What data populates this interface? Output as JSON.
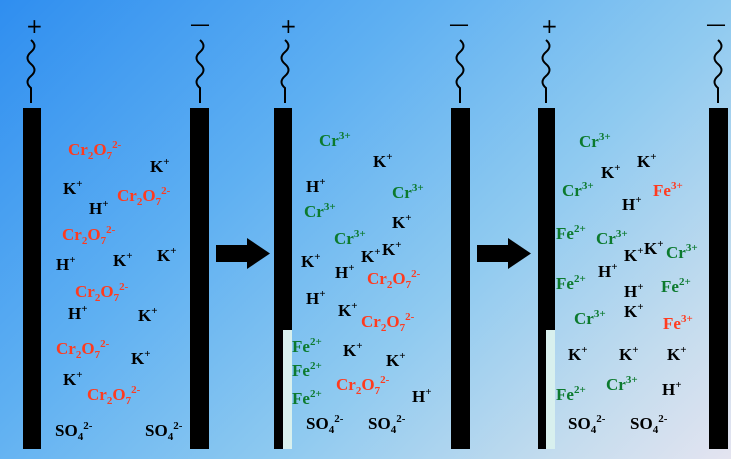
{
  "panels": [
    {
      "terminals": {
        "positive": "+",
        "negative": "—"
      },
      "ions": [
        {
          "id": "p1-1",
          "formula": "Cr<sub>2</sub>O<sub>7</sub><sup>2-</sup>",
          "color": "red"
        },
        {
          "id": "p1-2",
          "formula": "K<sup>+</sup>",
          "color": "black"
        },
        {
          "id": "p1-3",
          "formula": "K<sup>+</sup>",
          "color": "black"
        },
        {
          "id": "p1-4",
          "formula": "Cr<sub>2</sub>O<sub>7</sub><sup>2-</sup>",
          "color": "red"
        },
        {
          "id": "p1-5",
          "formula": "H<sup>+</sup>",
          "color": "black"
        },
        {
          "id": "p1-6",
          "formula": "Cr<sub>2</sub>O<sub>7</sub><sup>2-</sup>",
          "color": "red"
        },
        {
          "id": "p1-7",
          "formula": "H<sup>+</sup>",
          "color": "black"
        },
        {
          "id": "p1-8",
          "formula": "K<sup>+</sup>",
          "color": "black"
        },
        {
          "id": "p1-9",
          "formula": "K<sup>+</sup>",
          "color": "black"
        },
        {
          "id": "p1-10",
          "formula": "Cr<sub>2</sub>O<sub>7</sub><sup>2-</sup>",
          "color": "red"
        },
        {
          "id": "p1-11",
          "formula": "H<sup>+</sup>",
          "color": "black"
        },
        {
          "id": "p1-12",
          "formula": "K<sup>+</sup>",
          "color": "black"
        },
        {
          "id": "p1-13",
          "formula": "Cr<sub>2</sub>O<sub>7</sub><sup>2-</sup>",
          "color": "red"
        },
        {
          "id": "p1-14",
          "formula": "K<sup>+</sup>",
          "color": "black"
        },
        {
          "id": "p1-15",
          "formula": "K<sup>+</sup>",
          "color": "black"
        },
        {
          "id": "p1-16",
          "formula": "Cr<sub>2</sub>O<sub>7</sub><sup>2-</sup>",
          "color": "red"
        },
        {
          "id": "p1-17",
          "formula": "SO<sub>4</sub><sup>2-</sup>",
          "color": "black"
        },
        {
          "id": "p1-18",
          "formula": "SO<sub>4</sub><sup>2-</sup>",
          "color": "black"
        }
      ]
    },
    {
      "terminals": {
        "positive": "+",
        "negative": "—"
      },
      "ions": [
        {
          "id": "p2-1",
          "formula": "Cr<sup>3+</sup>",
          "color": "green"
        },
        {
          "id": "p2-2",
          "formula": "K<sup>+</sup>",
          "color": "black"
        },
        {
          "id": "p2-3",
          "formula": "H<sup>+</sup>",
          "color": "black"
        },
        {
          "id": "p2-4",
          "formula": "Cr<sup>3+</sup>",
          "color": "green"
        },
        {
          "id": "p2-5",
          "formula": "Cr<sup>3+</sup>",
          "color": "green"
        },
        {
          "id": "p2-6",
          "formula": "K<sup>+</sup>",
          "color": "black"
        },
        {
          "id": "p2-7",
          "formula": "Cr<sup>3+</sup>",
          "color": "green"
        },
        {
          "id": "p2-8",
          "formula": "K<sup>+</sup>",
          "color": "black"
        },
        {
          "id": "p2-9",
          "formula": "K<sup>+</sup>",
          "color": "black"
        },
        {
          "id": "p2-10",
          "formula": "K<sup>+</sup>",
          "color": "black"
        },
        {
          "id": "p2-11",
          "formula": "H<sup>+</sup>",
          "color": "black"
        },
        {
          "id": "p2-12",
          "formula": "Cr<sub>2</sub>O<sub>7</sub><sup>2-</sup>",
          "color": "red"
        },
        {
          "id": "p2-13",
          "formula": "H<sup>+</sup>",
          "color": "black"
        },
        {
          "id": "p2-14",
          "formula": "K<sup>+</sup>",
          "color": "black"
        },
        {
          "id": "p2-15",
          "formula": "Cr<sub>2</sub>O<sub>7</sub><sup>2-</sup>",
          "color": "red"
        },
        {
          "id": "p2-16",
          "formula": "Fe<sup>2+</sup>",
          "color": "green"
        },
        {
          "id": "p2-17",
          "formula": "K<sup>+</sup>",
          "color": "black"
        },
        {
          "id": "p2-18",
          "formula": "Fe<sup>2+</sup>",
          "color": "green"
        },
        {
          "id": "p2-19",
          "formula": "K<sup>+</sup>",
          "color": "black"
        },
        {
          "id": "p2-20",
          "formula": "Fe<sup>2+</sup>",
          "color": "green"
        },
        {
          "id": "p2-21",
          "formula": "Cr<sub>2</sub>O<sub>7</sub><sup>2-</sup>",
          "color": "red"
        },
        {
          "id": "p2-22",
          "formula": "H<sup>+</sup>",
          "color": "black"
        },
        {
          "id": "p2-23",
          "formula": "SO<sub>4</sub><sup>2-</sup>",
          "color": "black"
        },
        {
          "id": "p2-24",
          "formula": "SO<sub>4</sub><sup>2-</sup>",
          "color": "black"
        }
      ]
    },
    {
      "terminals": {
        "positive": "+",
        "negative": "—"
      },
      "ions": [
        {
          "id": "p3-1",
          "formula": "Cr<sup>3+</sup>",
          "color": "green"
        },
        {
          "id": "p3-2",
          "formula": "K<sup>+</sup>",
          "color": "black"
        },
        {
          "id": "p3-3",
          "formula": "K<sup>+</sup>",
          "color": "black"
        },
        {
          "id": "p3-4",
          "formula": "Cr<sup>3+</sup>",
          "color": "green"
        },
        {
          "id": "p3-5",
          "formula": "Fe<sup>3+</sup>",
          "color": "red"
        },
        {
          "id": "p3-6",
          "formula": "H<sup>+</sup>",
          "color": "black"
        },
        {
          "id": "p3-7",
          "formula": "Fe<sup>2+</sup>",
          "color": "green"
        },
        {
          "id": "p3-8",
          "formula": "Cr<sup>3+</sup>",
          "color": "green"
        },
        {
          "id": "p3-9",
          "formula": "K<sup>+</sup>",
          "color": "black"
        },
        {
          "id": "p3-10",
          "formula": "K<sup>+</sup>",
          "color": "black"
        },
        {
          "id": "p3-11",
          "formula": "Cr<sup>3+</sup>",
          "color": "green"
        },
        {
          "id": "p3-12",
          "formula": "H<sup>+</sup>",
          "color": "black"
        },
        {
          "id": "p3-13",
          "formula": "Fe<sup>2+</sup>",
          "color": "green"
        },
        {
          "id": "p3-14",
          "formula": "H<sup>+</sup>",
          "color": "black"
        },
        {
          "id": "p3-15",
          "formula": "Fe<sup>2+</sup>",
          "color": "green"
        },
        {
          "id": "p3-16",
          "formula": "Cr<sup>3+</sup>",
          "color": "green"
        },
        {
          "id": "p3-17",
          "formula": "K<sup>+</sup>",
          "color": "black"
        },
        {
          "id": "p3-18",
          "formula": "Fe<sup>3+</sup>",
          "color": "red"
        },
        {
          "id": "p3-19",
          "formula": "K<sup>+</sup>",
          "color": "black"
        },
        {
          "id": "p3-20",
          "formula": "K<sup>+</sup>",
          "color": "black"
        },
        {
          "id": "p3-21",
          "formula": "K<sup>+</sup>",
          "color": "black"
        },
        {
          "id": "p3-22",
          "formula": "Fe<sup>2+</sup>",
          "color": "green"
        },
        {
          "id": "p3-23",
          "formula": "Cr<sup>3+</sup>",
          "color": "green"
        },
        {
          "id": "p3-24",
          "formula": "H<sup>+</sup>",
          "color": "black"
        },
        {
          "id": "p3-25",
          "formula": "SO<sub>4</sub><sup>2-</sup>",
          "color": "black"
        },
        {
          "id": "p3-26",
          "formula": "SO<sub>4</sub><sup>2-</sup>",
          "color": "black"
        }
      ]
    }
  ],
  "colors": {
    "dichromate": "#ff3b1f",
    "trivalent_green": "#0c7a2e",
    "ferric": "#ff3b1f",
    "electrode": "#000000",
    "label_black": "#000000",
    "electrode_corroded_tint": "#d8f0ee"
  },
  "icons": [
    "right-arrow-icon",
    "wire-icon"
  ]
}
